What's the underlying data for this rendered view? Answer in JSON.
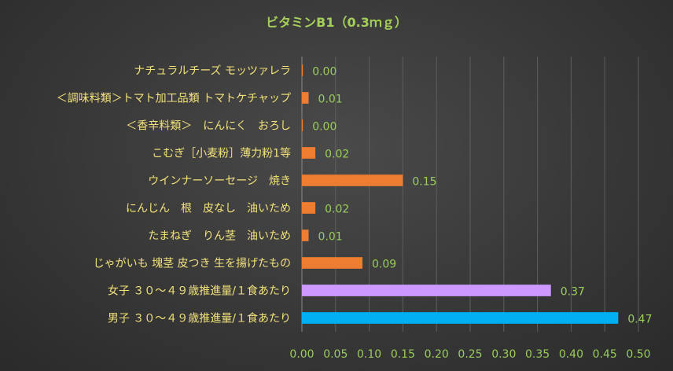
{
  "chart_data": {
    "type": "bar",
    "orientation": "horizontal",
    "title": "ビタミンB1（0.3ｍｇ）",
    "categories": [
      "ナチュラルチーズ モッツァレラ",
      "＜調味料類＞トマト加工品類 トマトケチャップ",
      "＜香辛料類＞　にんにく　おろし",
      "こむぎ［小麦粉］薄力粉1等",
      "ウインナーソーセージ　焼き",
      "にんじん　根　皮なし　油いため",
      "たまねぎ　りん茎　油いため",
      "じゃがいも 塊茎 皮つき 生を揚げたもの",
      "女子 ３０～４９歳推進量/１食あたり",
      "男子 ３０～４９歳推進量/１食あたり"
    ],
    "values": [
      0.0,
      0.01,
      0.0,
      0.02,
      0.15,
      0.02,
      0.01,
      0.09,
      0.37,
      0.47
    ],
    "value_labels": [
      "0.00",
      "0.01",
      "0.00",
      "0.02",
      "0.15",
      "0.02",
      "0.01",
      "0.09",
      "0.37",
      "0.47"
    ],
    "bar_colors": [
      "#ed7d31",
      "#ed7d31",
      "#ed7d31",
      "#ed7d31",
      "#ed7d31",
      "#ed7d31",
      "#ed7d31",
      "#ed7d31",
      "#cc99ff",
      "#00b0f0"
    ],
    "xlim": [
      0,
      0.5
    ],
    "xticks": [
      0,
      0.05,
      0.1,
      0.15,
      0.2,
      0.25,
      0.3,
      0.35,
      0.4,
      0.45,
      0.5
    ],
    "xtick_labels": [
      "0.00",
      "0.05",
      "0.10",
      "0.15",
      "0.20",
      "0.25",
      "0.30",
      "0.35",
      "0.40",
      "0.45",
      "0.50"
    ],
    "grid": true,
    "legend": "none",
    "colors": {
      "title": "#a6cf5a",
      "category_labels": "#f2e27a",
      "ticks_and_data_labels": "#9acd5a",
      "gridlines": "#5e5e5e"
    }
  }
}
